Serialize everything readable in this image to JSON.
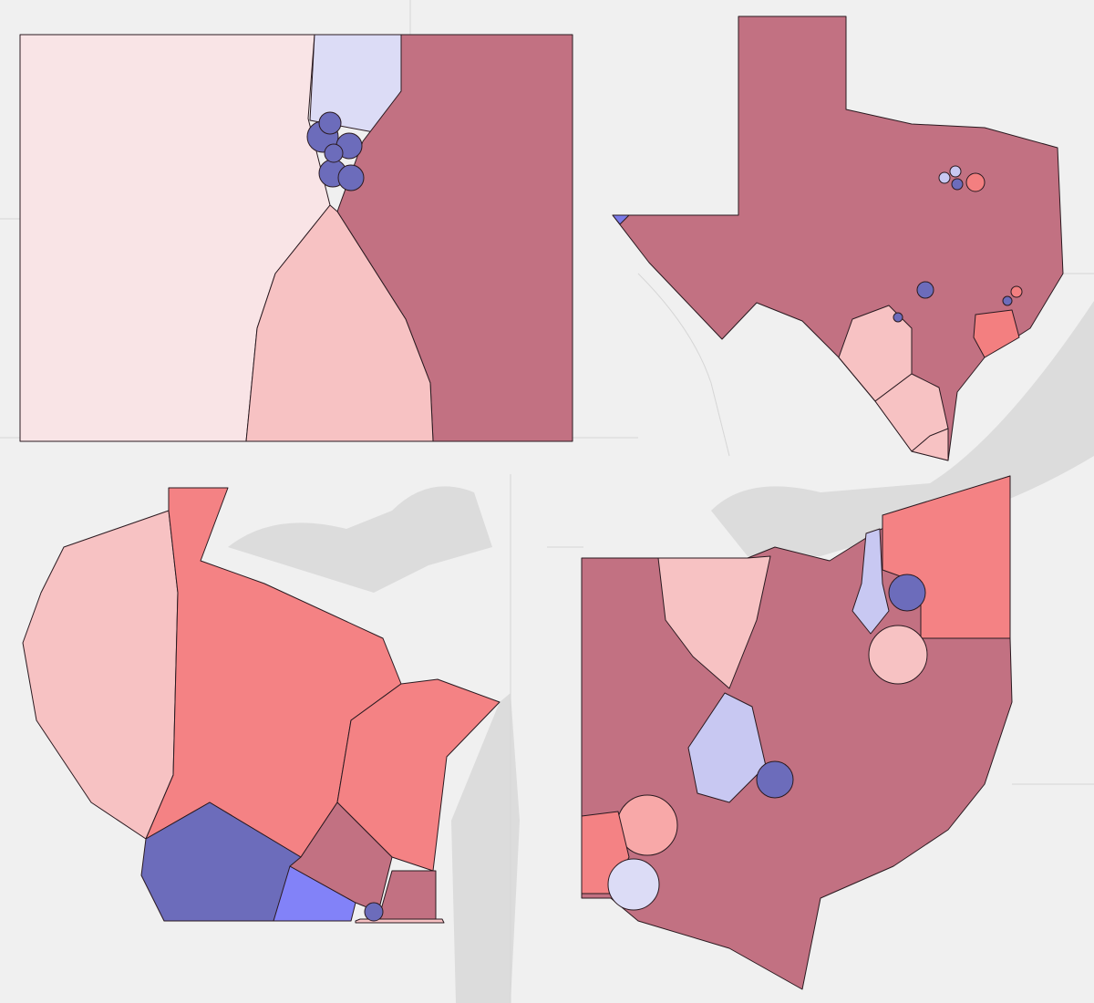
{
  "maps": [
    {
      "regions": [
        {
          "color": "#f9e4e6"
        },
        {
          "color": "#dcdcf6"
        },
        {
          "color": "#c27182"
        },
        {
          "color": "#f7c2c3"
        },
        {
          "color": "#6c6cbb"
        },
        {
          "color": "#6c6cbb"
        },
        {
          "color": "#6c6cbb"
        },
        {
          "color": "#6c6cbb"
        },
        {
          "color": "#6c6cbb"
        },
        {
          "color": "#6c6cbb"
        }
      ]
    },
    {
      "regions": [
        {
          "color": "#c27182"
        },
        {
          "color": "#f7c2c3"
        },
        {
          "color": "#f7c2c3"
        },
        {
          "color": "#f7c2c3"
        },
        {
          "color": "#f37f80"
        },
        {
          "color": "#7a7ae8"
        },
        {
          "color": "#6c6cbb"
        },
        {
          "color": "#c8c8f2"
        },
        {
          "color": "#6c6cbb"
        },
        {
          "color": "#f37f80"
        },
        {
          "color": "#6c6cbb"
        },
        {
          "color": "#6c6cbb"
        },
        {
          "color": "#c8c8f2"
        },
        {
          "color": "#f37f80"
        }
      ]
    },
    {
      "regions": [
        {
          "color": "#f7c2c3"
        },
        {
          "color": "#f48284"
        },
        {
          "color": "#f48284"
        },
        {
          "color": "#6c6cbb"
        },
        {
          "color": "#8282f8"
        },
        {
          "color": "#c27182"
        },
        {
          "color": "#c27182"
        },
        {
          "color": "#f7c2c3"
        },
        {
          "color": "#6c6cbb"
        }
      ]
    },
    {
      "regions": [
        {
          "color": "#c27182"
        },
        {
          "color": "#f7c2c3"
        },
        {
          "color": "#f48284"
        },
        {
          "color": "#c8c8f2"
        },
        {
          "color": "#6c6cbb"
        },
        {
          "color": "#f7c2c3"
        },
        {
          "color": "#c8c8f2"
        },
        {
          "color": "#6c6cbb"
        },
        {
          "color": "#f8a8a8"
        },
        {
          "color": "#f48284"
        },
        {
          "color": "#dcdcf6"
        }
      ]
    }
  ]
}
